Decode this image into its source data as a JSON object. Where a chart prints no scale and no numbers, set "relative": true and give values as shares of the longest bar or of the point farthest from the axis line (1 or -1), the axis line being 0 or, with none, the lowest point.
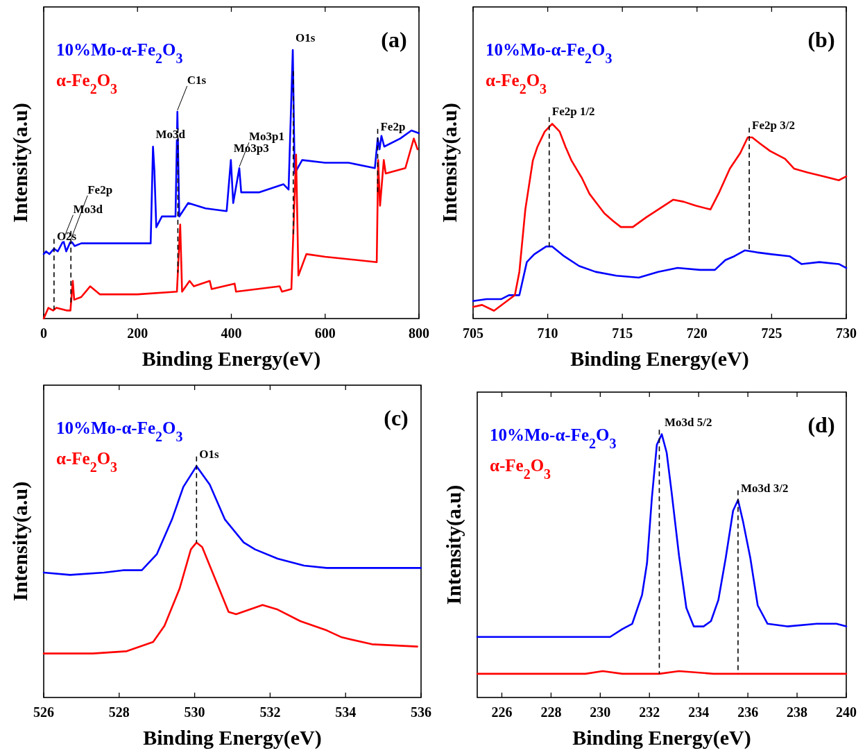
{
  "chart_data": [
    {
      "type": "line",
      "relative": true,
      "xlabel": "Binding Energy(eV)",
      "ylabel": "Intensity(a.u)",
      "xlim": [
        0,
        800
      ],
      "xticks": [
        0,
        200,
        400,
        600,
        800
      ],
      "tick_labels": "x",
      "legend": "top left",
      "ref_lines": [
        {
          "axis": "x",
          "value": 22,
          "line_style": "dashed"
        },
        {
          "axis": "x",
          "value": 58,
          "line_style": "dashed"
        },
        {
          "axis": "x",
          "value": 286,
          "line_style": "dashed"
        },
        {
          "axis": "x",
          "value": 532,
          "line_style": "dashed"
        },
        {
          "axis": "x",
          "value": 712,
          "line_style": "dashed"
        }
      ],
      "annotations": [
        "(a)",
        {
          "text": "O2s",
          "x": 22,
          "y": 0.26
        },
        {
          "text": "Mo3d",
          "x": 42,
          "y": 0.29
        },
        {
          "text": "Fe2p",
          "x": 58,
          "y": 0.29
        },
        {
          "text": "Mo3d",
          "x": 233,
          "y": 0.64
        },
        {
          "text": "C1s",
          "x": 285,
          "y": 0.77
        },
        {
          "text": "Mo3p3",
          "x": 399,
          "y": 0.59
        },
        {
          "text": "Mo3p1",
          "x": 417,
          "y": 0.56
        },
        {
          "text": "O1s",
          "x": 531,
          "y": 1.0
        },
        {
          "text": "Fe2p",
          "x": 712,
          "y": 0.67
        }
      ],
      "series": [
        {
          "name": "10%Mo-α-Fe$_{2}$O$_{3}$",
          "color": "#0000ff",
          "x": [
            0,
            5,
            12,
            22,
            30,
            42,
            48,
            58,
            66,
            80,
            150,
            228,
            233,
            236,
            240,
            252,
            281,
            285,
            289,
            308,
            345,
            390,
            399,
            404,
            417,
            421,
            460,
            511,
            522,
            531,
            535,
            551,
            600,
            650,
            706,
            712,
            716,
            720,
            726,
            760,
            784,
            800
          ],
          "values": [
            0.24,
            0.25,
            0.24,
            0.26,
            0.25,
            0.29,
            0.25,
            0.29,
            0.27,
            0.28,
            0.28,
            0.28,
            0.64,
            0.55,
            0.34,
            0.38,
            0.38,
            0.77,
            0.38,
            0.43,
            0.41,
            0.4,
            0.59,
            0.43,
            0.56,
            0.47,
            0.47,
            0.5,
            0.48,
            1.0,
            0.54,
            0.59,
            0.58,
            0.58,
            0.56,
            0.67,
            0.63,
            0.68,
            0.64,
            0.67,
            0.7,
            0.69
          ]
        },
        {
          "name": "α-Fe$_{2}$O$_{3}$",
          "color": "#ff0000",
          "x": [
            0,
            10,
            20,
            27,
            50,
            57,
            62,
            65,
            80,
            99,
            120,
            200,
            284,
            291,
            295,
            311,
            320,
            354,
            358,
            407,
            410,
            503,
            508,
            528,
            538,
            543,
            560,
            600,
            710,
            713,
            717,
            725,
            729,
            771,
            789,
            797
          ],
          "values": [
            0.0,
            0.04,
            0.03,
            0.04,
            0.03,
            0.03,
            0.14,
            0.07,
            0.08,
            0.12,
            0.09,
            0.09,
            0.1,
            0.35,
            0.1,
            0.14,
            0.12,
            0.14,
            0.11,
            0.13,
            0.1,
            0.12,
            0.1,
            0.11,
            0.61,
            0.16,
            0.24,
            0.23,
            0.21,
            0.59,
            0.42,
            0.59,
            0.54,
            0.56,
            0.67,
            0.63
          ]
        }
      ]
    },
    {
      "type": "line",
      "relative": true,
      "xlabel": "Binding Energy(eV)",
      "ylabel": "Intensity(a.u)",
      "xlim": [
        705,
        730
      ],
      "xticks": [
        705,
        710,
        715,
        720,
        725,
        730
      ],
      "tick_labels": "x",
      "legend": "top left",
      "ref_lines": [
        {
          "axis": "x",
          "value": 710.1,
          "line_style": "dashed"
        },
        {
          "axis": "x",
          "value": 723.5,
          "line_style": "dashed"
        }
      ],
      "annotations": [
        "(b)",
        {
          "text": "Fe2p 1/2",
          "x": 710.1,
          "y": 1.0
        },
        {
          "text": "Fe2p 3/2",
          "x": 723.5,
          "y": 0.93
        }
      ],
      "series": [
        {
          "name": "10%Mo-α-Fe$_{2}$O$_{3}$",
          "color": "#0000ff",
          "x": [
            705,
            705.9,
            706.9,
            707.4,
            708.1,
            708.6,
            709.1,
            709.9,
            710.3,
            711.1,
            712.1,
            713.2,
            714.6,
            716.1,
            717.4,
            718.7,
            720.2,
            721.2,
            721.9,
            722.5,
            723.2,
            724.0,
            725.0,
            726.2,
            727.0,
            728.2,
            729.5,
            730
          ],
          "values": [
            0.09,
            0.1,
            0.1,
            0.12,
            0.12,
            0.29,
            0.33,
            0.37,
            0.37,
            0.32,
            0.27,
            0.24,
            0.22,
            0.21,
            0.24,
            0.26,
            0.25,
            0.25,
            0.3,
            0.32,
            0.35,
            0.34,
            0.33,
            0.32,
            0.28,
            0.29,
            0.28,
            0.26
          ]
        },
        {
          "name": "α-Fe$_{2}$O$_{3}$",
          "color": "#ff0000",
          "x": [
            705,
            705.6,
            706.4,
            707.1,
            707.8,
            708.1,
            708.5,
            709.0,
            709.3,
            709.8,
            710.3,
            710.8,
            711.2,
            711.6,
            712.3,
            712.8,
            713.3,
            713.8,
            714.4,
            714.9,
            715.7,
            716.6,
            717.6,
            718.4,
            719.1,
            719.9,
            720.9,
            721.5,
            722.2,
            722.9,
            723.4,
            723.7,
            724.2,
            724.9,
            725.9,
            726.5,
            727.4,
            728.5,
            729.5,
            730
          ],
          "values": [
            0.06,
            0.07,
            0.04,
            0.08,
            0.12,
            0.24,
            0.56,
            0.81,
            0.88,
            0.96,
            1.0,
            0.96,
            0.88,
            0.81,
            0.72,
            0.64,
            0.59,
            0.54,
            0.5,
            0.47,
            0.47,
            0.52,
            0.57,
            0.61,
            0.6,
            0.58,
            0.56,
            0.65,
            0.77,
            0.85,
            0.93,
            0.93,
            0.9,
            0.86,
            0.82,
            0.77,
            0.75,
            0.73,
            0.71,
            0.73
          ]
        }
      ]
    },
    {
      "type": "line",
      "relative": true,
      "xlabel": "Binding Energy(eV)",
      "ylabel": "Intensity(a.u)",
      "xlim": [
        526,
        536
      ],
      "xticks": [
        526,
        528,
        530,
        532,
        534,
        536
      ],
      "tick_labels": "x",
      "legend": "top left",
      "ref_lines": [
        {
          "axis": "x",
          "value": 530.05,
          "line_style": "dashed"
        }
      ],
      "annotations": [
        "(c)",
        {
          "text": "O1s",
          "x": 530.05,
          "y": 1.0
        }
      ],
      "series": [
        {
          "name": "10%Mo-α-Fe$_{2}$O$_{3}$",
          "color": "#0000ff",
          "x": [
            526.0,
            526.7,
            527.6,
            528.1,
            528.6,
            529.0,
            529.4,
            529.7,
            530.05,
            530.4,
            530.8,
            531.3,
            531.6,
            532.2,
            532.9,
            533.5,
            534.5,
            536.0
          ],
          "values": [
            0.54,
            0.53,
            0.54,
            0.55,
            0.55,
            0.62,
            0.77,
            0.91,
            1.0,
            0.92,
            0.77,
            0.67,
            0.64,
            0.6,
            0.57,
            0.56,
            0.56,
            0.56
          ]
        },
        {
          "name": "α-Fe$_{2}$O$_{3}$",
          "color": "#ff0000",
          "x": [
            526.0,
            527.3,
            528.2,
            528.9,
            529.2,
            529.6,
            529.9,
            530.05,
            530.2,
            530.7,
            530.9,
            531.1,
            531.8,
            532.2,
            532.8,
            533.5,
            533.9,
            534.7,
            535.9
          ],
          "values": [
            0.19,
            0.19,
            0.2,
            0.24,
            0.31,
            0.47,
            0.64,
            0.67,
            0.65,
            0.45,
            0.37,
            0.36,
            0.4,
            0.38,
            0.33,
            0.29,
            0.26,
            0.23,
            0.22
          ]
        }
      ]
    },
    {
      "type": "line",
      "relative": true,
      "xlabel": "Binding Energy(eV)",
      "ylabel": "Intensity(a.u)",
      "xlim": [
        225,
        240
      ],
      "xticks": [
        226,
        228,
        230,
        232,
        234,
        236,
        238,
        240
      ],
      "tick_labels": "x",
      "legend": "top left",
      "ref_lines": [
        {
          "axis": "x",
          "value": 232.4,
          "line_style": "dashed"
        },
        {
          "axis": "x",
          "value": 235.6,
          "line_style": "dashed"
        }
      ],
      "annotations": [
        "(d)",
        {
          "text": "Mo3d 5/2",
          "x": 232.5,
          "y": 1.0
        },
        {
          "text": "Mo3d 3/2",
          "x": 235.6,
          "y": 0.75
        }
      ],
      "series": [
        {
          "name": "10%Mo-α-Fe$_{2}$O$_{3}$",
          "color": "#0000ff",
          "x": [
            225.0,
            226.9,
            228.3,
            229.9,
            230.4,
            230.9,
            231.3,
            231.7,
            231.9,
            232.1,
            232.3,
            232.5,
            232.7,
            232.9,
            233.2,
            233.5,
            233.8,
            234.2,
            234.5,
            234.8,
            235.1,
            235.4,
            235.6,
            235.8,
            236.1,
            236.4,
            236.8,
            237.6,
            238.8,
            239.6,
            240.0
          ],
          "values": [
            0.23,
            0.23,
            0.23,
            0.23,
            0.23,
            0.26,
            0.28,
            0.39,
            0.51,
            0.76,
            0.96,
            1.0,
            0.93,
            0.78,
            0.54,
            0.34,
            0.27,
            0.27,
            0.29,
            0.37,
            0.53,
            0.71,
            0.75,
            0.67,
            0.53,
            0.35,
            0.28,
            0.27,
            0.28,
            0.28,
            0.27
          ]
        },
        {
          "name": "α-Fe$_{2}$O$_{3}$",
          "color": "#ff0000",
          "x": [
            225.0,
            227.9,
            229.4,
            230.1,
            230.9,
            232.4,
            233.2,
            234.6,
            236.8,
            240.0
          ],
          "values": [
            0.09,
            0.09,
            0.09,
            0.1,
            0.09,
            0.09,
            0.1,
            0.09,
            0.09,
            0.09
          ]
        }
      ]
    }
  ]
}
